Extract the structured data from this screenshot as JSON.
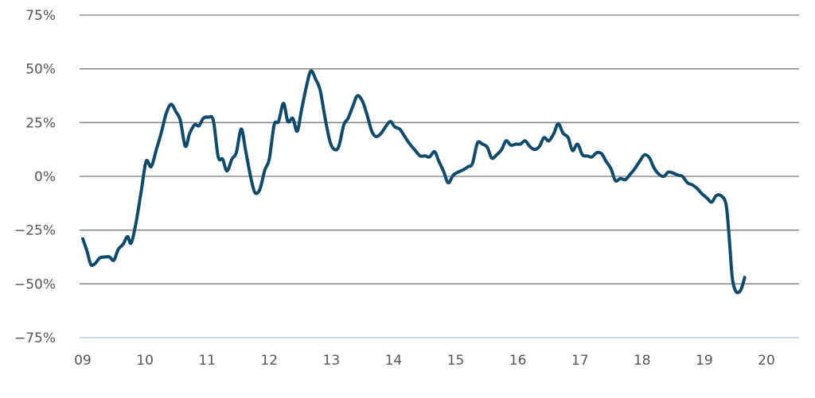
{
  "chart_data": {
    "type": "line",
    "title": "",
    "xlabel": "",
    "ylabel": "",
    "x_range": [
      2009.0,
      2020.5
    ],
    "ylim": [
      -75,
      75
    ],
    "y_ticks": [
      {
        "value": 75,
        "label": "75%"
      },
      {
        "value": 50,
        "label": "50%"
      },
      {
        "value": 25,
        "label": "25%"
      },
      {
        "value": 0,
        "label": "0%"
      },
      {
        "value": -25,
        "label": "−25%"
      },
      {
        "value": -50,
        "label": "−50%"
      },
      {
        "value": -75,
        "label": "−75%"
      }
    ],
    "x_ticks": [
      {
        "value": 2009,
        "label": "09"
      },
      {
        "value": 2010,
        "label": "10"
      },
      {
        "value": 2011,
        "label": "11"
      },
      {
        "value": 2012,
        "label": "12"
      },
      {
        "value": 2013,
        "label": "13"
      },
      {
        "value": 2014,
        "label": "14"
      },
      {
        "value": 2015,
        "label": "15"
      },
      {
        "value": 2016,
        "label": "16"
      },
      {
        "value": 2017,
        "label": "17"
      },
      {
        "value": 2018,
        "label": "18"
      },
      {
        "value": 2019,
        "label": "19"
      },
      {
        "value": 2020,
        "label": "20"
      }
    ],
    "grid": true,
    "legend": "none",
    "series": [
      {
        "color": "#0d4a6b",
        "points": [
          [
            2009.0,
            -29
          ],
          [
            2009.07,
            -35
          ],
          [
            2009.13,
            -41
          ],
          [
            2009.2,
            -40.5
          ],
          [
            2009.27,
            -38
          ],
          [
            2009.35,
            -37.5
          ],
          [
            2009.43,
            -37.5
          ],
          [
            2009.5,
            -39
          ],
          [
            2009.57,
            -34
          ],
          [
            2009.65,
            -31.5
          ],
          [
            2009.72,
            -28
          ],
          [
            2009.78,
            -31
          ],
          [
            2009.86,
            -21
          ],
          [
            2009.94,
            -7
          ],
          [
            2010.02,
            7
          ],
          [
            2010.1,
            4.5
          ],
          [
            2010.18,
            12
          ],
          [
            2010.26,
            20
          ],
          [
            2010.34,
            29
          ],
          [
            2010.42,
            33.5
          ],
          [
            2010.5,
            30
          ],
          [
            2010.57,
            26
          ],
          [
            2010.65,
            14
          ],
          [
            2010.72,
            20
          ],
          [
            2010.8,
            24
          ],
          [
            2010.87,
            23.5
          ],
          [
            2010.94,
            27
          ],
          [
            2011.02,
            27.5
          ],
          [
            2011.1,
            26
          ],
          [
            2011.18,
            9
          ],
          [
            2011.25,
            8
          ],
          [
            2011.32,
            2.5
          ],
          [
            2011.4,
            8
          ],
          [
            2011.47,
            11
          ],
          [
            2011.55,
            22
          ],
          [
            2011.62,
            12
          ],
          [
            2011.7,
            0
          ],
          [
            2011.77,
            -7.5
          ],
          [
            2011.85,
            -6
          ],
          [
            2011.93,
            3
          ],
          [
            2012.0,
            8
          ],
          [
            2012.08,
            24
          ],
          [
            2012.15,
            25.5
          ],
          [
            2012.23,
            34
          ],
          [
            2012.3,
            25.5
          ],
          [
            2012.38,
            27
          ],
          [
            2012.45,
            21
          ],
          [
            2012.52,
            31
          ],
          [
            2012.6,
            42
          ],
          [
            2012.67,
            49
          ],
          [
            2012.75,
            45
          ],
          [
            2012.82,
            40
          ],
          [
            2012.9,
            27
          ],
          [
            2012.98,
            16
          ],
          [
            2013.05,
            12.5
          ],
          [
            2013.12,
            14
          ],
          [
            2013.2,
            24
          ],
          [
            2013.27,
            27
          ],
          [
            2013.35,
            33
          ],
          [
            2013.42,
            37.5
          ],
          [
            2013.5,
            35
          ],
          [
            2013.57,
            29
          ],
          [
            2013.65,
            21
          ],
          [
            2013.72,
            18.5
          ],
          [
            2013.8,
            20
          ],
          [
            2013.87,
            23
          ],
          [
            2013.95,
            25.5
          ],
          [
            2014.02,
            23
          ],
          [
            2014.1,
            22
          ],
          [
            2014.17,
            19
          ],
          [
            2014.25,
            15.5
          ],
          [
            2014.35,
            12
          ],
          [
            2014.43,
            9.5
          ],
          [
            2014.51,
            9.5
          ],
          [
            2014.58,
            9
          ],
          [
            2014.66,
            11.5
          ],
          [
            2014.73,
            7
          ],
          [
            2014.81,
            2
          ],
          [
            2014.88,
            -3
          ],
          [
            2014.96,
            0.5
          ],
          [
            2015.04,
            2
          ],
          [
            2015.12,
            3
          ],
          [
            2015.2,
            4.5
          ],
          [
            2015.27,
            6
          ],
          [
            2015.35,
            15.5
          ],
          [
            2015.43,
            15
          ],
          [
            2015.51,
            13.5
          ],
          [
            2015.58,
            8.5
          ],
          [
            2015.66,
            10
          ],
          [
            2015.74,
            12.5
          ],
          [
            2015.81,
            16.5
          ],
          [
            2015.89,
            14.5
          ],
          [
            2015.97,
            15
          ],
          [
            2016.04,
            15
          ],
          [
            2016.12,
            16.5
          ],
          [
            2016.19,
            14
          ],
          [
            2016.27,
            12.5
          ],
          [
            2016.35,
            14
          ],
          [
            2016.42,
            18
          ],
          [
            2016.5,
            16.5
          ],
          [
            2016.58,
            20
          ],
          [
            2016.65,
            24.5
          ],
          [
            2016.73,
            20
          ],
          [
            2016.81,
            18
          ],
          [
            2016.88,
            12
          ],
          [
            2016.96,
            15
          ],
          [
            2017.04,
            10
          ],
          [
            2017.12,
            9.5
          ],
          [
            2017.19,
            9
          ],
          [
            2017.27,
            11
          ],
          [
            2017.35,
            10.5
          ],
          [
            2017.42,
            7
          ],
          [
            2017.5,
            3.5
          ],
          [
            2017.57,
            -2
          ],
          [
            2017.65,
            -1
          ],
          [
            2017.73,
            -1.5
          ],
          [
            2017.81,
            1
          ],
          [
            2017.88,
            3.5
          ],
          [
            2017.96,
            7
          ],
          [
            2018.04,
            10
          ],
          [
            2018.12,
            8.5
          ],
          [
            2018.19,
            4
          ],
          [
            2018.27,
            1
          ],
          [
            2018.35,
            0
          ],
          [
            2018.42,
            2
          ],
          [
            2018.5,
            1.5
          ],
          [
            2018.58,
            0.5
          ],
          [
            2018.65,
            0
          ],
          [
            2018.73,
            -3
          ],
          [
            2018.81,
            -4
          ],
          [
            2018.88,
            -5.5
          ],
          [
            2018.96,
            -8
          ],
          [
            2019.04,
            -10
          ],
          [
            2019.12,
            -12
          ],
          [
            2019.19,
            -9
          ],
          [
            2019.27,
            -9
          ],
          [
            2019.35,
            -13
          ],
          [
            2019.4,
            -28
          ],
          [
            2019.45,
            -47
          ],
          [
            2019.5,
            -53
          ],
          [
            2019.55,
            -54
          ],
          [
            2019.6,
            -52
          ],
          [
            2019.65,
            -47
          ]
        ]
      }
    ]
  }
}
